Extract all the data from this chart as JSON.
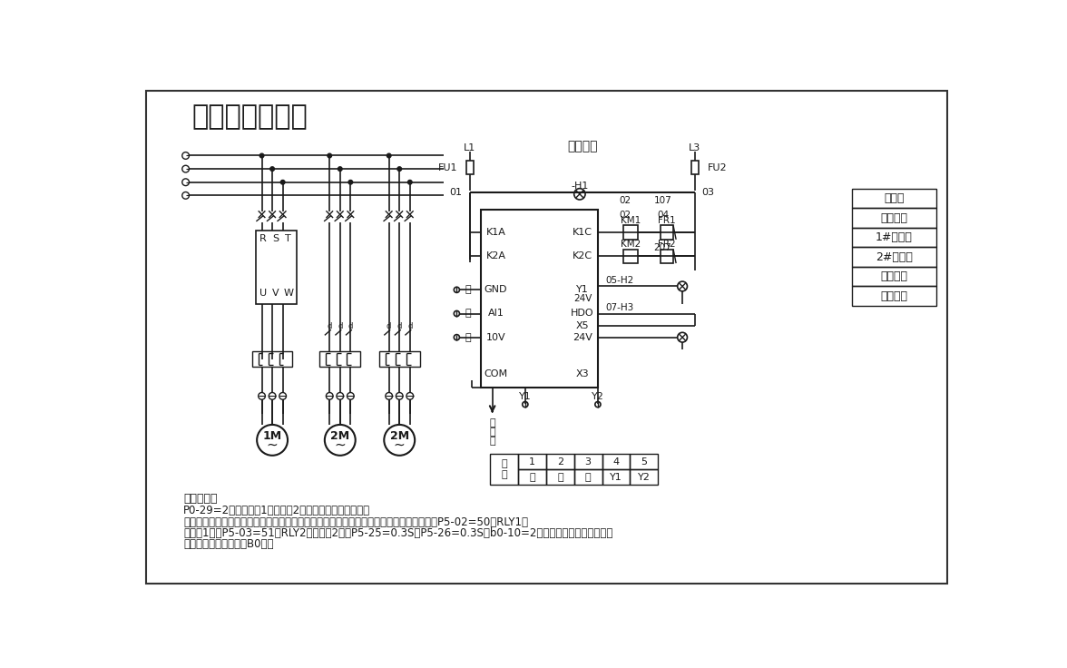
{
  "title": "一变两工接线图",
  "background": "#ffffff",
  "line_color": "#1a1a1a",
  "text_color": "#1a1a1a",
  "config_title": "配置说明：",
  "config_lines": [
    "P0-29=2，即可实现1变频泵拖2工频泵的恒压供水模式；",
    "此模式基于上面【单泵变频恒压力供水宏】的初始化默认参数条件下，增加如下默认参数：P5-02=50（RLY1为",
    "辅助泵1）；P5-03=51（RLY2为辅助泵2）；P5-25=0.3S，P5-26=0.3S，b0-10=2（两个辅助泵），更多控制",
    "参数请看恒压供水参数B0组。"
  ],
  "control_title": "控制回路",
  "legend_items": [
    "熔断器",
    "电源指示",
    "1#辅助泵",
    "2#辅助泵",
    "运行指示",
    "故障指示"
  ],
  "vfd_left_labels": [
    [
      "K1A",
      218
    ],
    [
      "K2A",
      252
    ],
    [
      "GND",
      300
    ],
    [
      "AI1",
      334
    ],
    [
      "10V",
      368
    ],
    [
      "COM",
      420
    ]
  ],
  "vfd_right_labels": [
    [
      "K1C",
      218
    ],
    [
      "K2C",
      252
    ],
    [
      "Y1",
      300
    ],
    [
      "HDO",
      334
    ],
    [
      "X5",
      351
    ],
    [
      "24V",
      368
    ],
    [
      "X3",
      420
    ]
  ],
  "motor_labels": [
    "1M",
    "2M",
    "2M"
  ]
}
